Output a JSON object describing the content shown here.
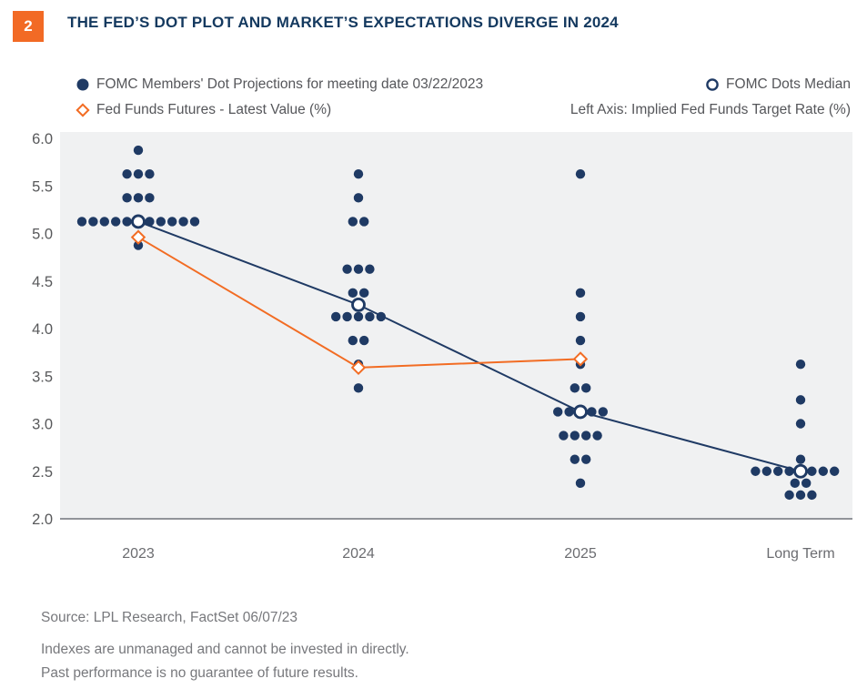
{
  "figure_badge": "2",
  "title": "THE FED’S DOT PLOT AND MARKET’S EXPECTATIONS DIVERGE IN 2024",
  "legend": {
    "dots_label": "FOMC Members' Dot Projections for meeting date 03/22/2023",
    "median_label": "FOMC Dots Median",
    "futures_label": "Fed Funds Futures - Latest Value (%)",
    "axis_note": "Left Axis: Implied Fed Funds Target Rate (%)"
  },
  "footer": {
    "source": "Source: LPL Research, FactSet  06/07/23",
    "disclaimer1": "Indexes are unmanaged and cannot be invested in directly.",
    "disclaimer2": "Past performance is no guarantee of future results."
  },
  "colors": {
    "navy": "#1F3A64",
    "orange": "#F26C23",
    "title_navy": "#14395F",
    "badge_orange": "#F26A25",
    "tick_text": "#58595B",
    "xlabel_text": "#6B6C70",
    "muted_text": "#77787C",
    "plot_bg": "#F0F1F2",
    "axis_line": "#70747A"
  },
  "chart_data": {
    "type": "scatter",
    "title": "THE FED’S DOT PLOT AND MARKET’S EXPECTATIONS DIVERGE IN 2024",
    "xlabel": "",
    "ylabel": "Implied Fed Funds Target Rate (%)",
    "ylim": [
      2.0,
      6.0
    ],
    "y_ticks": [
      6.0,
      5.5,
      5.0,
      4.5,
      4.0,
      3.5,
      3.0,
      2.5,
      2.0
    ],
    "grid": false,
    "legend_position": "top",
    "categories": [
      "2023",
      "2024",
      "2025",
      "Long Term"
    ],
    "dot_groups": [
      {
        "category": "2023",
        "rows": [
          {
            "value": 5.875,
            "count": 1
          },
          {
            "value": 5.625,
            "count": 3
          },
          {
            "value": 5.375,
            "count": 3
          },
          {
            "value": 5.125,
            "count": 10
          },
          {
            "value": 4.875,
            "count": 1
          }
        ]
      },
      {
        "category": "2024",
        "rows": [
          {
            "value": 5.625,
            "count": 1
          },
          {
            "value": 5.375,
            "count": 1
          },
          {
            "value": 5.125,
            "count": 2
          },
          {
            "value": 4.625,
            "count": 3
          },
          {
            "value": 4.375,
            "count": 2
          },
          {
            "value": 4.125,
            "count": 5
          },
          {
            "value": 3.875,
            "count": 2
          },
          {
            "value": 3.625,
            "count": 1
          },
          {
            "value": 3.375,
            "count": 1
          }
        ]
      },
      {
        "category": "2025",
        "rows": [
          {
            "value": 5.625,
            "count": 1
          },
          {
            "value": 4.375,
            "count": 1
          },
          {
            "value": 4.125,
            "count": 1
          },
          {
            "value": 3.875,
            "count": 1
          },
          {
            "value": 3.625,
            "count": 1
          },
          {
            "value": 3.375,
            "count": 2
          },
          {
            "value": 3.125,
            "count": 4
          },
          {
            "value": 2.875,
            "count": 4
          },
          {
            "value": 2.625,
            "count": 2
          },
          {
            "value": 2.375,
            "count": 1
          }
        ]
      },
      {
        "category": "Long Term",
        "rows": [
          {
            "value": 3.625,
            "count": 1
          },
          {
            "value": 3.25,
            "count": 1
          },
          {
            "value": 3.0,
            "count": 1
          },
          {
            "value": 2.625,
            "count": 1
          },
          {
            "value": 2.5,
            "count": 7
          },
          {
            "value": 2.375,
            "count": 2
          },
          {
            "value": 2.25,
            "count": 3
          }
        ]
      }
    ],
    "series": [
      {
        "name": "FOMC Dots Median",
        "type": "line+open-circle",
        "categories": [
          "2023",
          "2024",
          "2025",
          "Long Term"
        ],
        "values": [
          5.125,
          4.25,
          3.125,
          2.5
        ]
      },
      {
        "name": "Fed Funds Futures - Latest Value (%)",
        "type": "line+open-diamond",
        "categories": [
          "2023",
          "2024",
          "2025"
        ],
        "values": [
          4.96,
          3.59,
          3.68
        ]
      }
    ]
  }
}
